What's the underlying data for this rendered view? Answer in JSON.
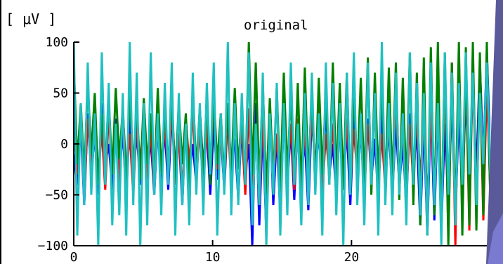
{
  "chart_data": {
    "type": "line",
    "title": "original",
    "ylabel": "[ μV ]",
    "xlabel": "",
    "xlim": [
      0,
      30
    ],
    "ylim": [
      -100,
      100
    ],
    "x_ticks": [
      0,
      10,
      20
    ],
    "y_ticks": [
      100,
      50,
      0,
      -50,
      -100
    ],
    "grid": false,
    "legend": "none",
    "series": [
      {
        "color": "#0000ff",
        "values": [
          -10,
          -40,
          20,
          -60,
          30,
          -30,
          10,
          -50,
          40,
          -20,
          0,
          -45,
          25,
          -35,
          15,
          -55,
          30,
          -25,
          10,
          -40,
          35,
          -30,
          5,
          -50,
          20,
          -35,
          15,
          -45,
          30,
          -20,
          10,
          -60,
          25,
          -30,
          0,
          -40,
          35,
          -25,
          15,
          -50,
          20,
          -35,
          10,
          -45,
          30,
          -20,
          5,
          -55,
          25,
          -30,
          0,
          -100,
          40,
          -80,
          20,
          -90,
          35,
          -60,
          10,
          -70,
          30,
          -40,
          15,
          -55,
          25,
          -35,
          5,
          -65,
          30,
          -25,
          10,
          -45,
          35,
          -30,
          0,
          -50,
          20,
          -40,
          15,
          -60,
          30,
          -25,
          10,
          -45,
          25,
          -35,
          5,
          -55,
          35,
          -30,
          15,
          -50,
          20,
          -40,
          0,
          -60,
          30,
          -20,
          10,
          -80,
          25,
          -90,
          40,
          -75,
          35,
          -85,
          20,
          -60,
          45,
          -70,
          30,
          -50,
          50,
          -40,
          60,
          -30,
          80,
          -20,
          90,
          -10
        ]
      },
      {
        "color": "#ff0000",
        "values": [
          20,
          -30,
          35,
          -50,
          25,
          -20,
          40,
          -35,
          15,
          -45,
          30,
          -25,
          20,
          -40,
          35,
          -30,
          10,
          -50,
          25,
          -20,
          30,
          -35,
          15,
          -45,
          40,
          -25,
          20,
          -30,
          35,
          -40,
          10,
          -50,
          25,
          -20,
          30,
          -35,
          15,
          -45,
          20,
          -30,
          40,
          -25,
          10,
          -35,
          25,
          -40,
          30,
          -20,
          15,
          -50,
          35,
          -45,
          20,
          -60,
          25,
          -40,
          30,
          -35,
          10,
          -50,
          40,
          -30,
          20,
          -45,
          25,
          -35,
          15,
          -40,
          30,
          -25,
          35,
          -50,
          10,
          -30,
          20,
          -45,
          40,
          -35,
          25,
          -40,
          15,
          -30,
          30,
          -50,
          20,
          -25,
          35,
          -40,
          10,
          -45,
          25,
          -30,
          40,
          -35,
          15,
          -50,
          20,
          -40,
          30,
          -35,
          25,
          -60,
          35,
          -50,
          60,
          -80,
          70,
          -90,
          80,
          -100,
          90,
          -70,
          75,
          -85,
          85,
          -60,
          70,
          -75,
          60,
          -50
        ]
      },
      {
        "color": "#008000",
        "values": [
          80,
          -20,
          40,
          -30,
          60,
          -10,
          50,
          -40,
          30,
          -20,
          45,
          -30,
          55,
          -15,
          35,
          -40,
          50,
          -25,
          40,
          -35,
          45,
          -20,
          30,
          -40,
          55,
          -30,
          35,
          -25,
          50,
          -35,
          40,
          -20,
          30,
          -45,
          55,
          -25,
          35,
          -30,
          45,
          -40,
          50,
          -20,
          30,
          -35,
          40,
          -30,
          55,
          -25,
          35,
          -40,
          100,
          -30,
          80,
          -40,
          60,
          -50,
          45,
          -35,
          55,
          -45,
          70,
          -30,
          50,
          -40,
          60,
          -50,
          75,
          -35,
          55,
          -45,
          65,
          -30,
          50,
          -40,
          80,
          -35,
          60,
          -45,
          70,
          -50,
          55,
          -30,
          65,
          -40,
          85,
          -50,
          70,
          -35,
          60,
          -45,
          75,
          -40,
          80,
          -55,
          65,
          -45,
          90,
          -60,
          70,
          -80,
          85,
          -90,
          95,
          -70,
          100,
          -85,
          90,
          -100,
          80,
          -75,
          100,
          -90,
          95,
          -80,
          100,
          -85,
          90,
          -70,
          100,
          -60
        ]
      },
      {
        "color": "#20c0c0",
        "values": [
          100,
          -90,
          40,
          -60,
          80,
          -50,
          30,
          -100,
          90,
          -40,
          60,
          -80,
          20,
          -70,
          50,
          -90,
          100,
          -60,
          70,
          -100,
          40,
          -80,
          90,
          -50,
          30,
          -70,
          60,
          -40,
          80,
          -90,
          50,
          -60,
          20,
          -80,
          70,
          -50,
          40,
          -70,
          60,
          -30,
          80,
          -90,
          30,
          -50,
          100,
          -70,
          40,
          -60,
          50,
          -40,
          90,
          -80,
          20,
          -60,
          70,
          -100,
          30,
          -50,
          60,
          -90,
          40,
          -70,
          80,
          -40,
          20,
          -80,
          50,
          -60,
          70,
          -50,
          30,
          -90,
          80,
          -40,
          60,
          -70,
          40,
          -100,
          70,
          -50,
          90,
          -60,
          30,
          -80,
          80,
          -40,
          50,
          -90,
          100,
          -60,
          40,
          -70,
          70,
          -50,
          30,
          -80,
          90,
          -40,
          60,
          -70,
          50,
          -90,
          80,
          -60,
          40,
          -100,
          90,
          -50,
          70,
          -80,
          60,
          -40,
          90,
          -30,
          70,
          -60,
          50,
          -20,
          80,
          -30
        ]
      }
    ]
  }
}
